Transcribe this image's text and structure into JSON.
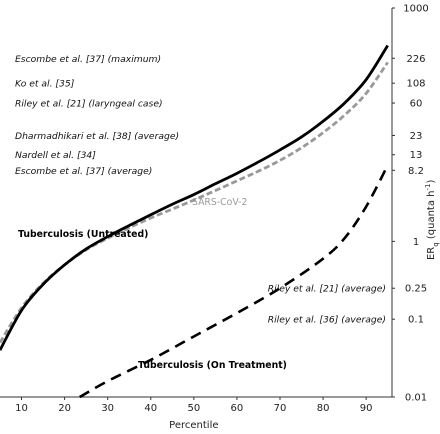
{
  "chart_data": {
    "type": "line",
    "title": "",
    "xlabel": "Percentile",
    "ylabel": "ERq (quanta h⁻¹)",
    "ylabel_parts": {
      "main": "ER",
      "subscript": "q",
      "unit_open": " (quanta h",
      "unit_superscript": "-1",
      "unit_close": ")"
    },
    "xlim": [
      5,
      96
    ],
    "ylim": [
      0.01,
      1000
    ],
    "y_scale": "log",
    "grid": false,
    "x_ticks": [
      "10",
      "20",
      "30",
      "40",
      "50",
      "60",
      "70",
      "80",
      "90"
    ],
    "y_ticks": [
      "0.01",
      "0.1",
      "0.25",
      "1",
      "8.2",
      "13",
      "23",
      "60",
      "108",
      "226",
      "1000"
    ],
    "y_axis_side": "right",
    "series": [
      {
        "name": "Tuberculosis (Untreated)",
        "style": "solid",
        "color": "#000000",
        "x": [
          5,
          10,
          15,
          20,
          25,
          30,
          35,
          40,
          45,
          50,
          55,
          60,
          65,
          70,
          75,
          80,
          85,
          90,
          95
        ],
        "y": [
          0.04,
          0.13,
          0.28,
          0.5,
          0.8,
          1.15,
          1.6,
          2.2,
          3.0,
          4.0,
          5.5,
          7.5,
          10.5,
          15,
          22,
          35,
          60,
          120,
          330
        ]
      },
      {
        "name": "SARS-CoV-2",
        "style": "dashed",
        "color": "#999999",
        "x": [
          5,
          10,
          15,
          20,
          25,
          30,
          35,
          40,
          45,
          50,
          55,
          60,
          65,
          70,
          75,
          80,
          85,
          90,
          95
        ],
        "y": [
          0.05,
          0.14,
          0.29,
          0.5,
          0.78,
          1.1,
          1.5,
          2.0,
          2.6,
          3.4,
          4.5,
          6.0,
          8.0,
          11,
          16,
          25,
          42,
          80,
          200
        ]
      },
      {
        "name": "Tuberculosis (On Treatment)",
        "style": "dashed",
        "color": "#000000",
        "x": [
          23.5,
          30,
          40,
          50,
          60,
          70,
          80,
          85,
          90,
          95
        ],
        "y": [
          0.01,
          0.016,
          0.03,
          0.06,
          0.12,
          0.25,
          0.6,
          1.1,
          2.8,
          9.5
        ]
      }
    ],
    "reference_labels": [
      {
        "text": "Escombe et al. [37] (maximum)",
        "value": 226
      },
      {
        "text": "Ko et al. [35]",
        "value": 108
      },
      {
        "text": "Riley et al. [21] (laryngeal case)",
        "value": 60
      },
      {
        "text": "Dharmadhikari et al. [38] (average)",
        "value": 23
      },
      {
        "text": "Nardell et al. [34]",
        "value": 13
      },
      {
        "text": "Escombe et al. [37] (average)",
        "value": 8.2
      },
      {
        "text": "Riley et al. [21] (average)",
        "value": 0.25
      },
      {
        "text": "Riley et al. [36] (average)",
        "value": 0.1
      }
    ],
    "series_labels": [
      {
        "text": "Tuberculosis (Untreated)",
        "near_x": 27,
        "near_y": 1.3
      },
      {
        "text": "SARS-CoV-2",
        "near_x": 56,
        "near_y": 2.3
      },
      {
        "text": "Tuberculosis (On Treatment)",
        "near_x": 37,
        "near_y": 0.03
      }
    ]
  }
}
